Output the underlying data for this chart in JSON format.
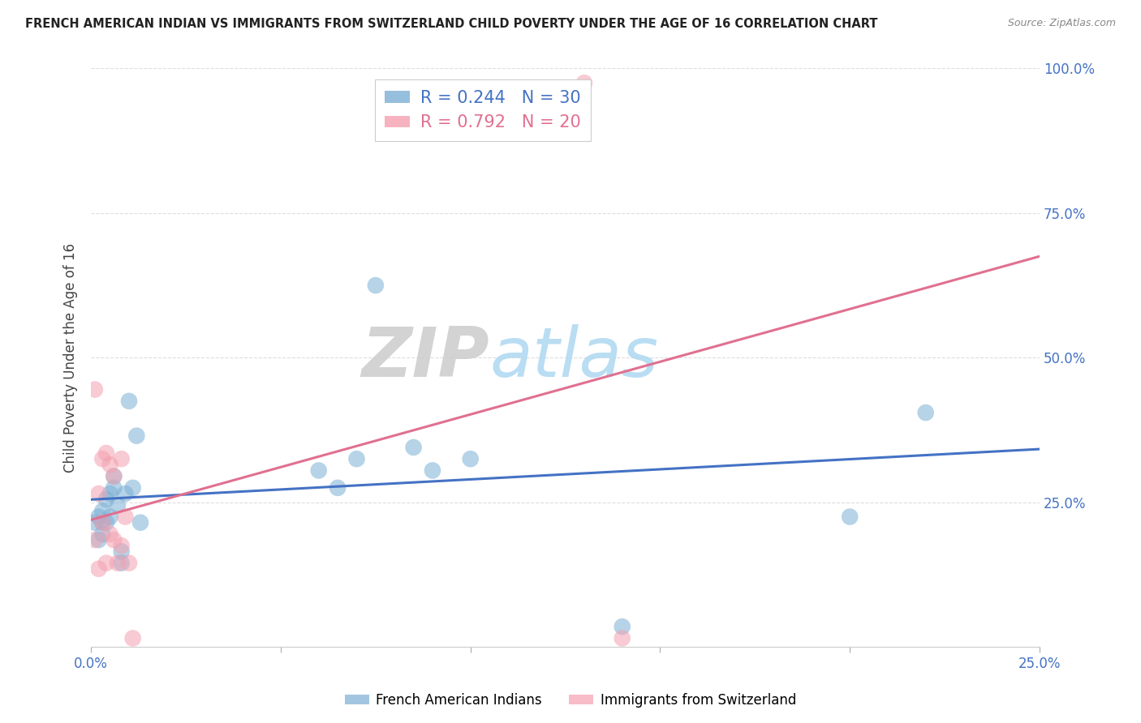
{
  "title": "FRENCH AMERICAN INDIAN VS IMMIGRANTS FROM SWITZERLAND CHILD POVERTY UNDER THE AGE OF 16 CORRELATION CHART",
  "source": "Source: ZipAtlas.com",
  "ylabel": "Child Poverty Under the Age of 16",
  "xlim": [
    0.0,
    0.25
  ],
  "ylim": [
    0.0,
    1.0
  ],
  "xticks": [
    0.0,
    0.05,
    0.1,
    0.15,
    0.2,
    0.25
  ],
  "yticks": [
    0.0,
    0.25,
    0.5,
    0.75,
    1.0
  ],
  "xticklabels": [
    "0.0%",
    "",
    "",
    "",
    "",
    "25.0%"
  ],
  "yticklabels_right": [
    "",
    "25.0%",
    "50.0%",
    "75.0%",
    "100.0%"
  ],
  "blue_R": 0.244,
  "blue_N": 30,
  "pink_R": 0.792,
  "pink_N": 20,
  "blue_color": "#7BAFD4",
  "pink_color": "#F4A0B0",
  "blue_line_color": "#4472C4",
  "pink_line_color": "#E07090",
  "blue_x": [
    0.001,
    0.002,
    0.002,
    0.003,
    0.003,
    0.003,
    0.004,
    0.004,
    0.005,
    0.005,
    0.006,
    0.006,
    0.007,
    0.008,
    0.008,
    0.009,
    0.01,
    0.011,
    0.012,
    0.013,
    0.06,
    0.065,
    0.07,
    0.075,
    0.085,
    0.09,
    0.1,
    0.14,
    0.2,
    0.22
  ],
  "blue_y": [
    0.215,
    0.185,
    0.225,
    0.195,
    0.215,
    0.235,
    0.215,
    0.255,
    0.225,
    0.265,
    0.275,
    0.295,
    0.245,
    0.145,
    0.165,
    0.265,
    0.425,
    0.275,
    0.365,
    0.215,
    0.305,
    0.275,
    0.325,
    0.625,
    0.345,
    0.305,
    0.325,
    0.035,
    0.225,
    0.405
  ],
  "pink_x": [
    0.001,
    0.001,
    0.002,
    0.002,
    0.003,
    0.003,
    0.004,
    0.004,
    0.005,
    0.005,
    0.006,
    0.006,
    0.007,
    0.008,
    0.008,
    0.009,
    0.01,
    0.011,
    0.13,
    0.14
  ],
  "pink_y": [
    0.185,
    0.445,
    0.135,
    0.265,
    0.215,
    0.325,
    0.145,
    0.335,
    0.195,
    0.315,
    0.185,
    0.295,
    0.145,
    0.325,
    0.175,
    0.225,
    0.145,
    0.015,
    0.975,
    0.015
  ],
  "legend_blue_label": "R = 0.244   N = 30",
  "legend_pink_label": "R = 0.792   N = 20",
  "bottom_legend_blue": "French American Indians",
  "bottom_legend_pink": "Immigrants from Switzerland"
}
